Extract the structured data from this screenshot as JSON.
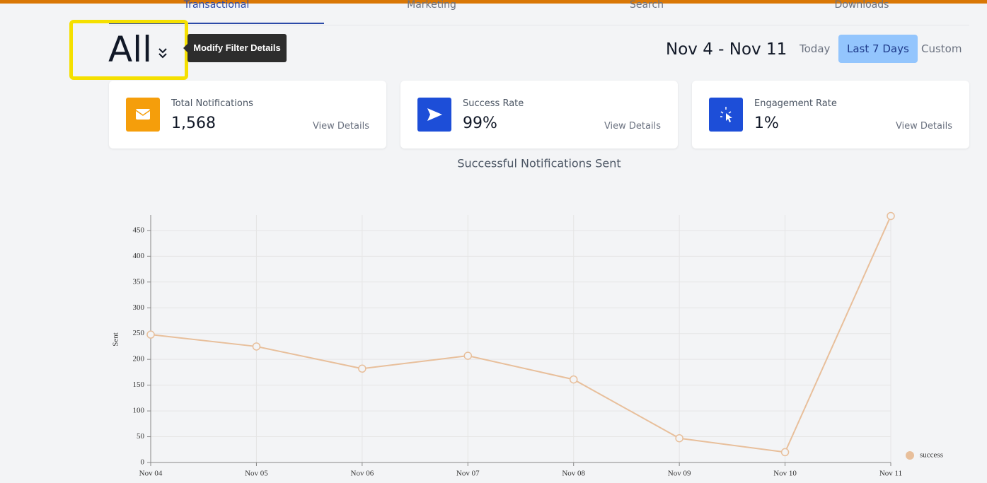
{
  "tabs": [
    "Transactional",
    "Marketing",
    "Search",
    "Downloads"
  ],
  "filter": {
    "label": "All",
    "tooltip": "Modify Filter Details"
  },
  "date_range": "Nov 4 - Nov 11",
  "range_buttons": [
    "Today",
    "Last 7 Days",
    "Custom"
  ],
  "cards": [
    {
      "title": "Total Notifications",
      "value": "1,568",
      "link": "View Details"
    },
    {
      "title": "Success Rate",
      "value": "99%",
      "link": "View Details"
    },
    {
      "title": "Engagement Rate",
      "value": "1%",
      "link": "View Details"
    }
  ],
  "chart_data": {
    "type": "line",
    "title": "Successful Notifications Sent",
    "y_label": "Sent",
    "categories": [
      "Nov 04",
      "Nov 05",
      "Nov 06",
      "Nov 07",
      "Nov 08",
      "Nov 09",
      "Nov 10",
      "Nov 11"
    ],
    "series": [
      {
        "name": "success",
        "color": "#e8bf9b",
        "values": [
          248,
          225,
          182,
          207,
          161,
          47,
          20,
          478
        ]
      }
    ],
    "ylim": [
      0,
      480
    ],
    "yticks": [
      0,
      50,
      100,
      150,
      200,
      250,
      300,
      350,
      400,
      450
    ],
    "grid": true,
    "legend": "bottom-right"
  }
}
